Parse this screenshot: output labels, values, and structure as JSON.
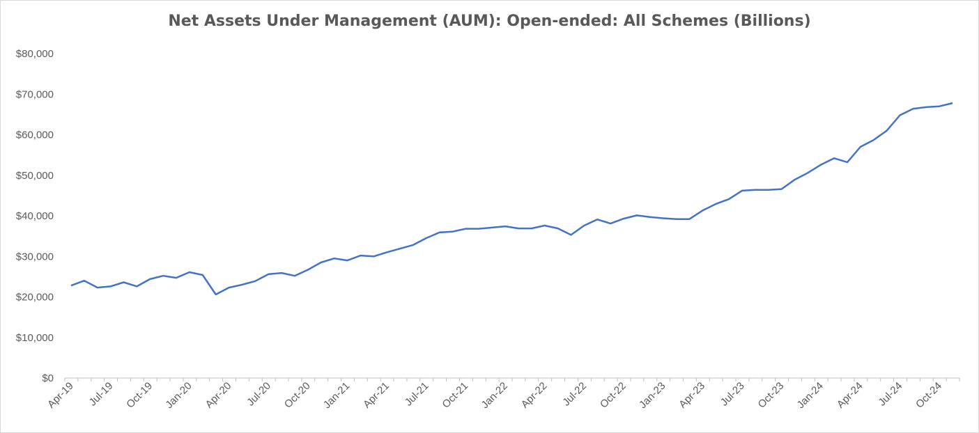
{
  "chart_data": {
    "type": "line",
    "title": "Net Assets Under Management (AUM): Open-ended: All Schemes (Billions)",
    "xlabel": "",
    "ylabel": "",
    "ylim": [
      0,
      80000
    ],
    "y_ticks": [
      0,
      10000,
      20000,
      30000,
      40000,
      50000,
      60000,
      70000,
      80000
    ],
    "y_tick_labels": [
      "$0",
      "$10,000",
      "$20,000",
      "$30,000",
      "$40,000",
      "$50,000",
      "$60,000",
      "$70,000",
      "$80,000"
    ],
    "x_tick_labels": [
      "Apr-19",
      "Jul-19",
      "Oct-19",
      "Jan-20",
      "Apr-20",
      "Jul-20",
      "Oct-20",
      "Jan-21",
      "Apr-21",
      "Jul-21",
      "Oct-21",
      "Jan-22",
      "Apr-22",
      "Jul-22",
      "Oct-22",
      "Jan-23",
      "Apr-23",
      "Jul-23",
      "Oct-23",
      "Jan-24",
      "Apr-24",
      "Jul-24",
      "Oct-24"
    ],
    "grid": false,
    "legend": "none",
    "line_color": "#4472c4",
    "categories": [
      "Apr-19",
      "May-19",
      "Jun-19",
      "Jul-19",
      "Aug-19",
      "Sep-19",
      "Oct-19",
      "Nov-19",
      "Dec-19",
      "Jan-20",
      "Feb-20",
      "Mar-20",
      "Apr-20",
      "May-20",
      "Jun-20",
      "Jul-20",
      "Aug-20",
      "Sep-20",
      "Oct-20",
      "Nov-20",
      "Dec-20",
      "Jan-21",
      "Feb-21",
      "Mar-21",
      "Apr-21",
      "May-21",
      "Jun-21",
      "Jul-21",
      "Aug-21",
      "Sep-21",
      "Oct-21",
      "Nov-21",
      "Dec-21",
      "Jan-22",
      "Feb-22",
      "Mar-22",
      "Apr-22",
      "May-22",
      "Jun-22",
      "Jul-22",
      "Aug-22",
      "Sep-22",
      "Oct-22",
      "Nov-22",
      "Dec-22",
      "Jan-23",
      "Feb-23",
      "Mar-23",
      "Apr-23",
      "May-23",
      "Jun-23",
      "Jul-23",
      "Aug-23",
      "Sep-23",
      "Oct-23",
      "Nov-23",
      "Dec-23",
      "Jan-24",
      "Feb-24",
      "Mar-24",
      "Apr-24",
      "May-24",
      "Jun-24",
      "Jul-24",
      "Aug-24",
      "Sep-24",
      "Oct-24",
      "Nov-24"
    ],
    "values": [
      22800,
      24000,
      22300,
      22600,
      23600,
      22600,
      24400,
      25200,
      24700,
      26100,
      25400,
      20600,
      22300,
      23000,
      23900,
      25600,
      25900,
      25200,
      26700,
      28500,
      29500,
      29000,
      30200,
      30000,
      31000,
      31900,
      32800,
      34500,
      35900,
      36100,
      36800,
      36800,
      37100,
      37400,
      36900,
      36900,
      37600,
      36900,
      35300,
      37600,
      39100,
      38100,
      39300,
      40100,
      39700,
      39400,
      39200,
      39200,
      41300,
      42900,
      44100,
      46200,
      46400,
      46400,
      46600,
      48900,
      50600,
      52600,
      54200,
      53200,
      57000,
      58700,
      61000,
      64800,
      66400,
      66800,
      67000,
      67800
    ]
  }
}
